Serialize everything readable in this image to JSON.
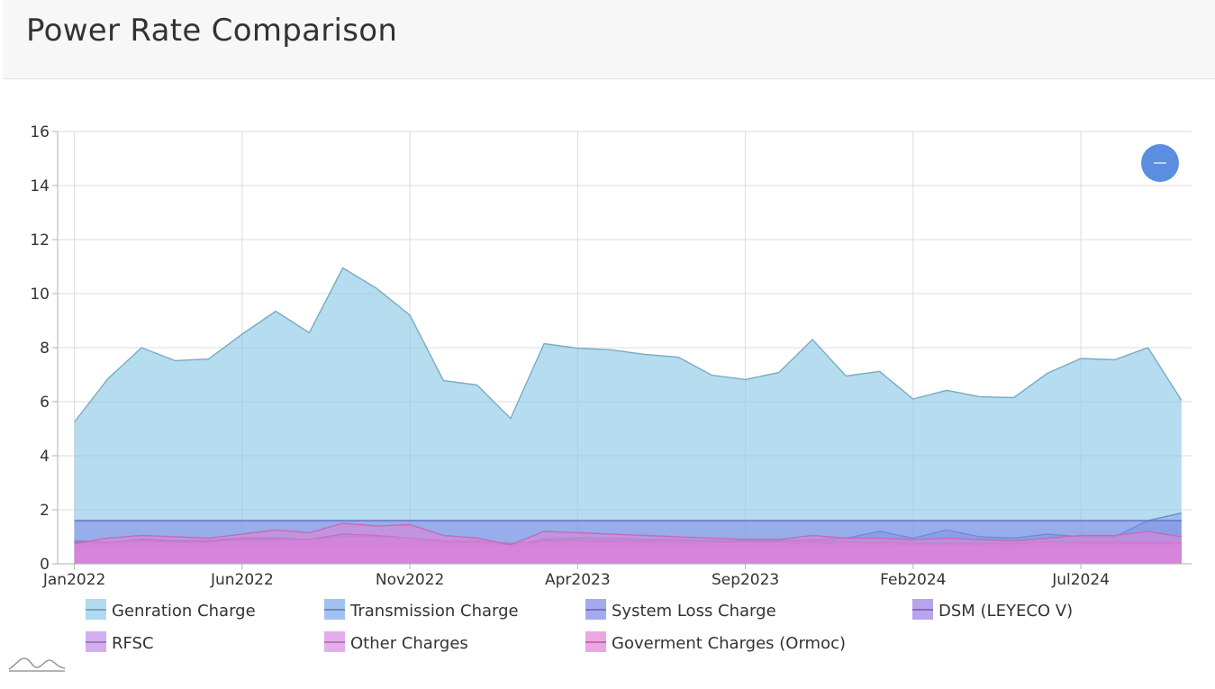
{
  "header": {
    "title": "Power Rate Comparison"
  },
  "colors": {
    "generation": "#8ecae6",
    "transmission": "#7aa6ea",
    "system_loss": "#7f86e8",
    "dsm": "#9a7de6",
    "rfsc": "#c08be8",
    "other": "#d88ae2",
    "government": "#e680d6",
    "zoom_button": "#5b8de0"
  },
  "chart_data": {
    "type": "area",
    "title": "",
    "xlabel": "",
    "ylabel": "",
    "ylim": [
      0,
      16
    ],
    "yticks": [
      0,
      2,
      4,
      6,
      8,
      10,
      12,
      14,
      16
    ],
    "x_tick_labels": [
      "Jan2022",
      "Jun2022",
      "Nov2022",
      "Apr2023",
      "Sep2023",
      "Feb2024",
      "Jul2024"
    ],
    "x_tick_months": [
      0,
      5,
      10,
      15,
      20,
      25,
      30
    ],
    "x": [
      "Jan2022",
      "Feb2022",
      "Mar2022",
      "Apr2022",
      "May2022",
      "Jun2022",
      "Jul2022",
      "Aug2022",
      "Sep2022",
      "Oct2022",
      "Nov2022",
      "Dec2022",
      "Jan2023",
      "Feb2023",
      "Mar2023",
      "Apr2023",
      "May2023",
      "Jun2023",
      "Jul2023",
      "Aug2023",
      "Sep2023",
      "Oct2023",
      "Nov2023",
      "Dec2023",
      "Jan2024",
      "Feb2024",
      "Mar2024",
      "Apr2024",
      "May2024",
      "Jun2024",
      "Jul2024",
      "Aug2024",
      "Sep2024",
      "Oct2024"
    ],
    "x_min_month": -0.5,
    "x_max_month": 33.3,
    "grid": true,
    "legend_position": "bottom",
    "series": [
      {
        "name": "Genration Charge",
        "color": "#8ecae6",
        "values": [
          5.25,
          6.85,
          8.0,
          7.52,
          7.58,
          8.5,
          9.35,
          8.55,
          10.95,
          10.2,
          9.2,
          6.78,
          6.62,
          5.38,
          8.15,
          7.98,
          7.92,
          7.75,
          7.65,
          6.98,
          6.82,
          7.08,
          8.3,
          6.95,
          7.12,
          6.1,
          6.42,
          6.18,
          6.15,
          7.05,
          7.6,
          7.55,
          8.0,
          6.05
        ]
      },
      {
        "name": "Transmission Charge",
        "color": "#7aa6ea",
        "values": [
          0.85,
          0.8,
          0.9,
          0.85,
          0.85,
          0.85,
          0.85,
          0.85,
          0.9,
          0.9,
          0.85,
          0.8,
          0.8,
          0.7,
          0.9,
          0.95,
          0.95,
          0.9,
          0.9,
          0.85,
          0.85,
          0.85,
          0.9,
          0.95,
          1.2,
          0.95,
          1.25,
          1.0,
          0.95,
          1.1,
          1.0,
          1.0,
          1.6,
          1.88
        ]
      },
      {
        "name": "System Loss Charge",
        "color": "#7f86e8",
        "values": [
          1.6,
          1.6,
          1.6,
          1.6,
          1.6,
          1.6,
          1.6,
          1.6,
          1.6,
          1.6,
          1.6,
          1.6,
          1.6,
          1.6,
          1.6,
          1.6,
          1.6,
          1.6,
          1.6,
          1.6,
          1.6,
          1.6,
          1.6,
          1.6,
          1.6,
          1.6,
          1.6,
          1.6,
          1.6,
          1.6,
          1.6,
          1.6,
          1.6,
          1.6
        ]
      },
      {
        "name": "DSM (LEYECO V)",
        "color": "#9a7de6",
        "values": [
          0.8,
          0.75,
          0.9,
          0.85,
          0.85,
          0.95,
          0.95,
          0.9,
          1.1,
          1.05,
          0.95,
          0.8,
          0.8,
          0.6,
          0.85,
          0.85,
          0.8,
          0.8,
          0.8,
          0.7,
          0.7,
          0.7,
          0.8,
          0.7,
          0.75,
          0.65,
          0.7,
          0.65,
          0.6,
          0.7,
          0.75,
          0.75,
          0.75,
          0.75
        ]
      },
      {
        "name": "RFSC",
        "color": "#c08be8",
        "values": [
          0.7,
          0.7,
          0.7,
          0.7,
          0.7,
          0.7,
          0.7,
          0.7,
          0.7,
          0.7,
          0.7,
          0.7,
          0.7,
          0.7,
          0.7,
          0.7,
          0.7,
          0.7,
          0.7,
          0.7,
          0.7,
          0.7,
          0.7,
          0.7,
          0.7,
          0.7,
          0.7,
          0.7,
          0.7,
          0.7,
          0.7,
          0.7,
          0.7,
          0.7
        ]
      },
      {
        "name": "Other Charges",
        "color": "#d88ae2",
        "values": [
          0.8,
          0.8,
          0.85,
          0.8,
          0.8,
          0.9,
          0.9,
          0.9,
          1.0,
          1.0,
          0.95,
          0.85,
          0.85,
          0.75,
          0.85,
          0.85,
          0.85,
          0.85,
          0.85,
          0.8,
          0.8,
          0.8,
          0.85,
          0.8,
          0.8,
          0.75,
          0.75,
          0.75,
          0.75,
          0.8,
          0.8,
          0.8,
          0.8,
          0.8
        ]
      },
      {
        "name": "Goverment Charges (Ormoc)",
        "color": "#e680d6",
        "values": [
          0.75,
          0.95,
          1.05,
          1.0,
          0.95,
          1.1,
          1.25,
          1.15,
          1.5,
          1.4,
          1.45,
          1.05,
          0.95,
          0.7,
          1.2,
          1.15,
          1.1,
          1.05,
          1.0,
          0.95,
          0.9,
          0.9,
          1.05,
          0.95,
          0.95,
          0.9,
          0.95,
          0.9,
          0.85,
          0.95,
          1.05,
          1.05,
          1.2,
          1.0
        ]
      }
    ]
  }
}
